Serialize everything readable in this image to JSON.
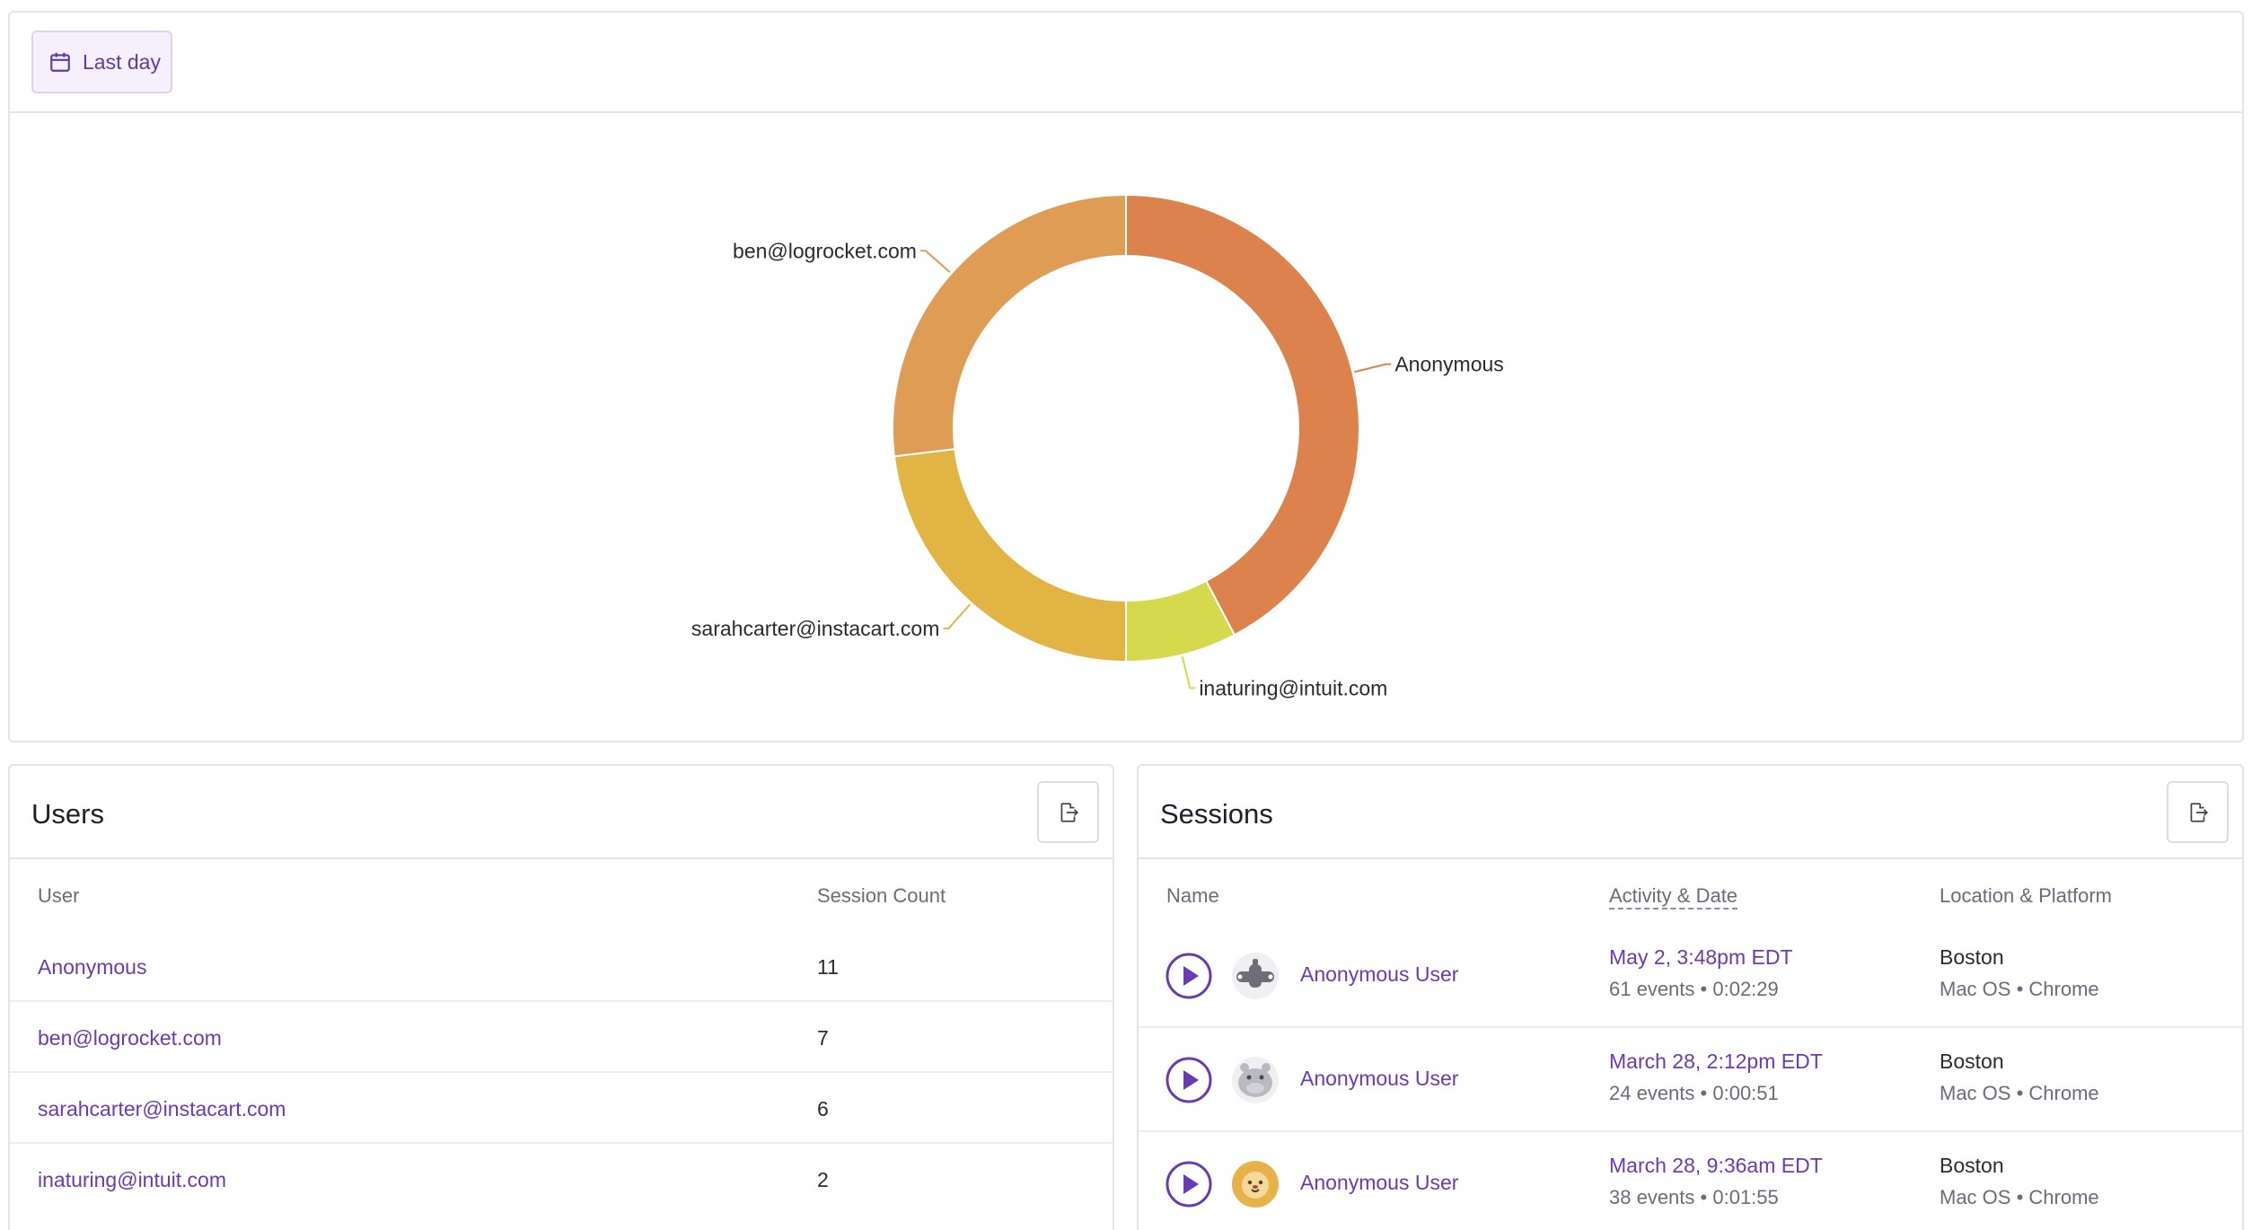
{
  "toolbar": {
    "date_range_label": "Last day",
    "icon": "calendar-icon"
  },
  "chart_data": {
    "type": "pie",
    "style": "donut",
    "title": "",
    "categories": [
      "Anonymous",
      "inaturing@intuit.com",
      "sarahcarter@instacart.com",
      "ben@logrocket.com"
    ],
    "values": [
      11,
      2,
      6,
      7
    ],
    "colors": [
      "#dc824d",
      "#d6d94e",
      "#e2b443",
      "#de9c54"
    ],
    "legend": "none",
    "labels": "outside-with-leader-lines"
  },
  "users": {
    "title": "Users",
    "export_icon": "export-icon",
    "columns": {
      "user": "User",
      "count": "Session Count"
    },
    "rows": [
      {
        "user": "Anonymous",
        "count": "11"
      },
      {
        "user": "ben@logrocket.com",
        "count": "7"
      },
      {
        "user": "sarahcarter@instacart.com",
        "count": "6"
      },
      {
        "user": "inaturing@intuit.com",
        "count": "2"
      }
    ]
  },
  "sessions": {
    "title": "Sessions",
    "export_icon": "export-icon",
    "columns": {
      "name": "Name",
      "activity": "Activity & Date",
      "location": "Location & Platform"
    },
    "rows": [
      {
        "avatar": "hammerhead-avatar-icon",
        "avatar_color": "#6e6e78",
        "name": "Anonymous User",
        "date": "May 2, 3:48pm EDT",
        "events": "61 events",
        "duration": "0:02:29",
        "location": "Boston",
        "os": "Mac OS",
        "browser": "Chrome"
      },
      {
        "avatar": "hippo-avatar-icon",
        "avatar_color": "#b9b9c2",
        "name": "Anonymous User",
        "date": "March 28, 2:12pm EDT",
        "events": "24 events",
        "duration": "0:00:51",
        "location": "Boston",
        "os": "Mac OS",
        "browser": "Chrome"
      },
      {
        "avatar": "lion-avatar-icon",
        "avatar_color": "#e8b24a",
        "name": "Anonymous User",
        "date": "March 28, 9:36am EDT",
        "events": "38 events",
        "duration": "0:01:55",
        "location": "Boston",
        "os": "Mac OS",
        "browser": "Chrome"
      }
    ],
    "separator": "•"
  },
  "colors": {
    "accent": "#6a3ab3",
    "border": "#e3e3e8"
  }
}
